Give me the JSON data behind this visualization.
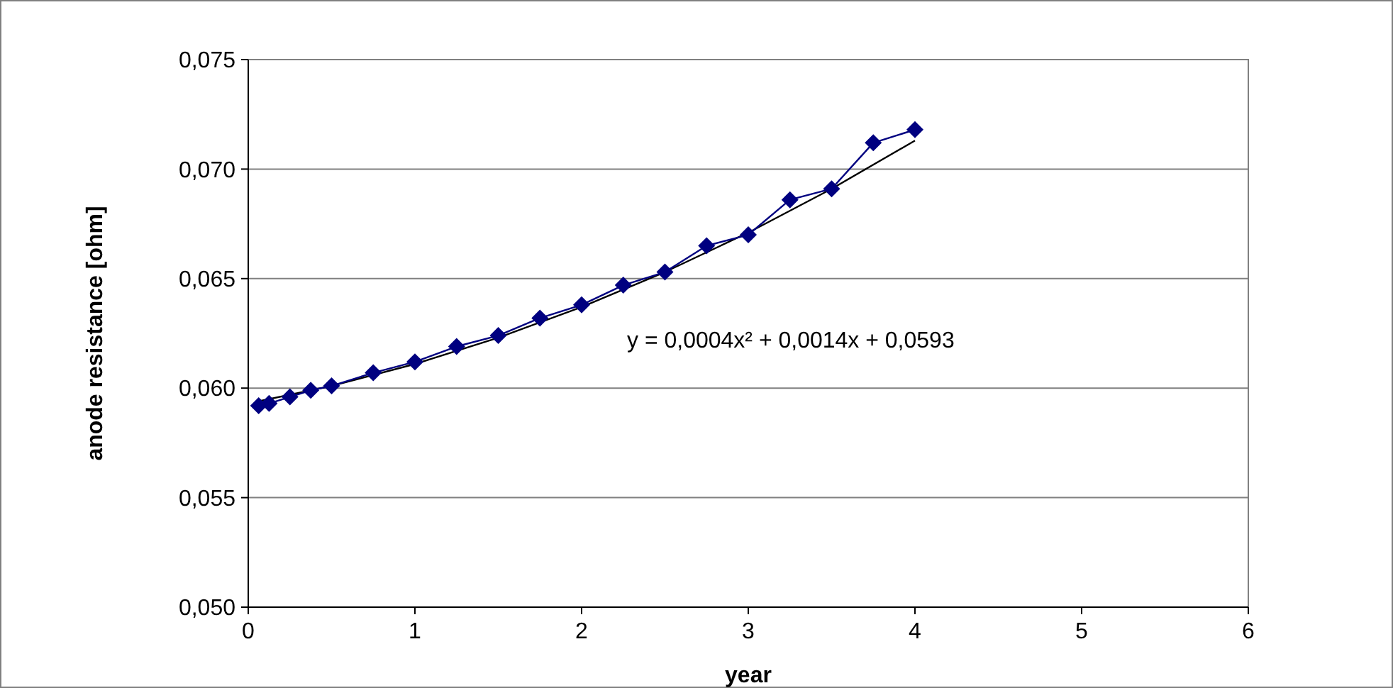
{
  "chart_data": {
    "type": "line",
    "xlabel": "year",
    "ylabel": "anode resistance [ohm]",
    "xlim": [
      0,
      6
    ],
    "xticks": [
      0,
      1,
      2,
      3,
      4,
      5,
      6
    ],
    "ylim": [
      0.05,
      0.075
    ],
    "yticks": [
      {
        "value": 0.05,
        "label": "0,050"
      },
      {
        "value": 0.055,
        "label": "0,055"
      },
      {
        "value": 0.06,
        "label": "0,060"
      },
      {
        "value": 0.065,
        "label": "0,065"
      },
      {
        "value": 0.07,
        "label": "0,070"
      },
      {
        "value": 0.075,
        "label": "0,075"
      }
    ],
    "grid": "y",
    "series": [
      {
        "color": "#000080",
        "marker": "diamond",
        "x": [
          0.0625,
          0.125,
          0.25,
          0.375,
          0.5,
          0.75,
          1,
          1.25,
          1.5,
          1.75,
          2,
          2.25,
          2.5,
          2.75,
          3,
          3.25,
          3.5,
          3.75,
          4
        ],
        "values": [
          0.0592,
          0.0593,
          0.0596,
          0.0599,
          0.0601,
          0.0607,
          0.0612,
          0.0619,
          0.0624,
          0.0632,
          0.0638,
          0.0647,
          0.0653,
          0.0665,
          0.067,
          0.0686,
          0.0691,
          0.0712,
          0.0718
        ]
      },
      {
        "color": "#000000",
        "marker": "none",
        "x": [
          0.0625,
          0.5,
          1,
          1.5,
          2,
          2.5,
          3,
          3.5,
          4
        ],
        "values": [
          0.0594,
          0.0601,
          0.0611,
          0.0623,
          0.0637,
          0.0653,
          0.0671,
          0.0691,
          0.0713
        ]
      }
    ],
    "annotations": [
      "y = 0,0004x² + 0,0014x + 0,0593"
    ]
  }
}
